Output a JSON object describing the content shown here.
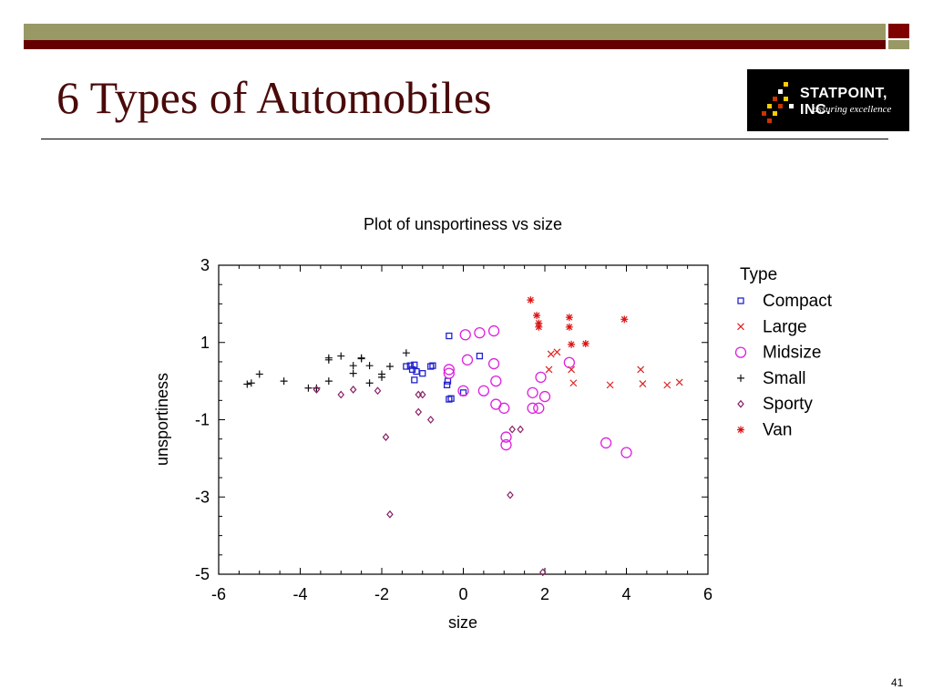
{
  "slide": {
    "title": "6 Types of Automobiles",
    "page_number": "41",
    "logo": {
      "brand": "STATPOINT, INC.",
      "tagline": "assuring excellence",
      "colors": {
        "background": "#000000",
        "dots": [
          "#ffcc00",
          "#cc3300",
          "#ffffff"
        ]
      }
    },
    "theme_colors": {
      "olive": "#999966",
      "maroon": "#660000",
      "title": "#4a0a0a"
    }
  },
  "chart_data": {
    "type": "scatter",
    "title": "Plot of unsportiness vs size",
    "xlabel": "size",
    "ylabel": "unsportiness",
    "xlim": [
      -6,
      6
    ],
    "ylim": [
      -5,
      3
    ],
    "xticks": [
      "-6",
      "-4",
      "-2",
      "0",
      "2",
      "4",
      "6"
    ],
    "yticks": [
      "3",
      "1",
      "-1",
      "-3",
      "-5"
    ],
    "legend_title": "Type",
    "legend_position": "right",
    "series": [
      {
        "name": "Compact",
        "marker": "square",
        "color": "#2222cc",
        "points": [
          [
            -1.4,
            0.38
          ],
          [
            -1.3,
            0.4
          ],
          [
            -1.2,
            0.42
          ],
          [
            -1.25,
            0.3
          ],
          [
            -1.15,
            0.25
          ],
          [
            -1.0,
            0.2
          ],
          [
            -0.8,
            0.38
          ],
          [
            -0.75,
            0.4
          ],
          [
            -1.2,
            0.03
          ],
          [
            -0.35,
            1.17
          ],
          [
            -0.4,
            -0.1
          ],
          [
            -0.3,
            -0.45
          ],
          [
            -0.35,
            -0.47
          ],
          [
            0.0,
            -0.3
          ],
          [
            0.4,
            0.65
          ],
          [
            -0.38,
            0.0
          ]
        ]
      },
      {
        "name": "Large",
        "marker": "x",
        "color": "#dd2222",
        "points": [
          [
            2.15,
            0.7
          ],
          [
            2.3,
            0.75
          ],
          [
            2.65,
            0.3
          ],
          [
            2.1,
            0.3
          ],
          [
            2.7,
            -0.05
          ],
          [
            3.6,
            -0.1
          ],
          [
            4.35,
            0.3
          ],
          [
            4.4,
            -0.07
          ],
          [
            5.0,
            -0.1
          ],
          [
            5.3,
            -0.03
          ]
        ]
      },
      {
        "name": "Midsize",
        "marker": "circle",
        "color": "#dd22dd",
        "points": [
          [
            0.05,
            1.2
          ],
          [
            0.4,
            1.25
          ],
          [
            0.75,
            1.3
          ],
          [
            0.1,
            0.55
          ],
          [
            0.75,
            0.45
          ],
          [
            -0.35,
            0.3
          ],
          [
            -0.35,
            0.2
          ],
          [
            0.8,
            0.0
          ],
          [
            1.9,
            0.1
          ],
          [
            2.6,
            0.48
          ],
          [
            0.5,
            -0.25
          ],
          [
            0.0,
            -0.25
          ],
          [
            0.8,
            -0.6
          ],
          [
            1.0,
            -0.7
          ],
          [
            1.7,
            -0.3
          ],
          [
            1.7,
            -0.7
          ],
          [
            1.85,
            -0.7
          ],
          [
            2.0,
            -0.4
          ],
          [
            1.05,
            -1.45
          ],
          [
            1.05,
            -1.65
          ],
          [
            3.5,
            -1.6
          ],
          [
            4.0,
            -1.85
          ]
        ]
      },
      {
        "name": "Small",
        "marker": "plus",
        "color": "#111111",
        "points": [
          [
            -5.3,
            -0.08
          ],
          [
            -5.2,
            -0.05
          ],
          [
            -5.0,
            0.18
          ],
          [
            -4.4,
            0.0
          ],
          [
            -3.8,
            -0.18
          ],
          [
            -3.6,
            -0.18
          ],
          [
            -3.3,
            0.6
          ],
          [
            -3.3,
            0.55
          ],
          [
            -3.0,
            0.65
          ],
          [
            -2.7,
            0.4
          ],
          [
            -2.7,
            0.2
          ],
          [
            -2.5,
            0.6
          ],
          [
            -2.5,
            0.58
          ],
          [
            -2.3,
            0.4
          ],
          [
            -2.0,
            0.18
          ],
          [
            -2.0,
            0.1
          ],
          [
            -1.8,
            0.38
          ],
          [
            -1.4,
            0.73
          ],
          [
            -3.3,
            0.0
          ],
          [
            -2.3,
            -0.05
          ]
        ]
      },
      {
        "name": "Sporty",
        "marker": "diamond",
        "color": "#882266",
        "points": [
          [
            -3.6,
            -0.22
          ],
          [
            -3.0,
            -0.35
          ],
          [
            -2.7,
            -0.22
          ],
          [
            -2.1,
            -0.25
          ],
          [
            -1.0,
            -0.35
          ],
          [
            -1.1,
            -0.35
          ],
          [
            -1.1,
            -0.8
          ],
          [
            -0.8,
            -1.0
          ],
          [
            -1.9,
            -1.45
          ],
          [
            1.2,
            -1.25
          ],
          [
            1.4,
            -1.25
          ],
          [
            1.15,
            -2.95
          ],
          [
            -1.8,
            -3.45
          ],
          [
            1.95,
            -4.95
          ]
        ]
      },
      {
        "name": "Van",
        "marker": "asterisk",
        "color": "#dd1111",
        "points": [
          [
            1.65,
            2.1
          ],
          [
            1.8,
            1.7
          ],
          [
            1.85,
            1.5
          ],
          [
            1.85,
            1.4
          ],
          [
            2.6,
            1.65
          ],
          [
            2.6,
            1.4
          ],
          [
            2.65,
            0.95
          ],
          [
            3.0,
            0.97
          ],
          [
            3.95,
            1.6
          ]
        ]
      }
    ]
  }
}
